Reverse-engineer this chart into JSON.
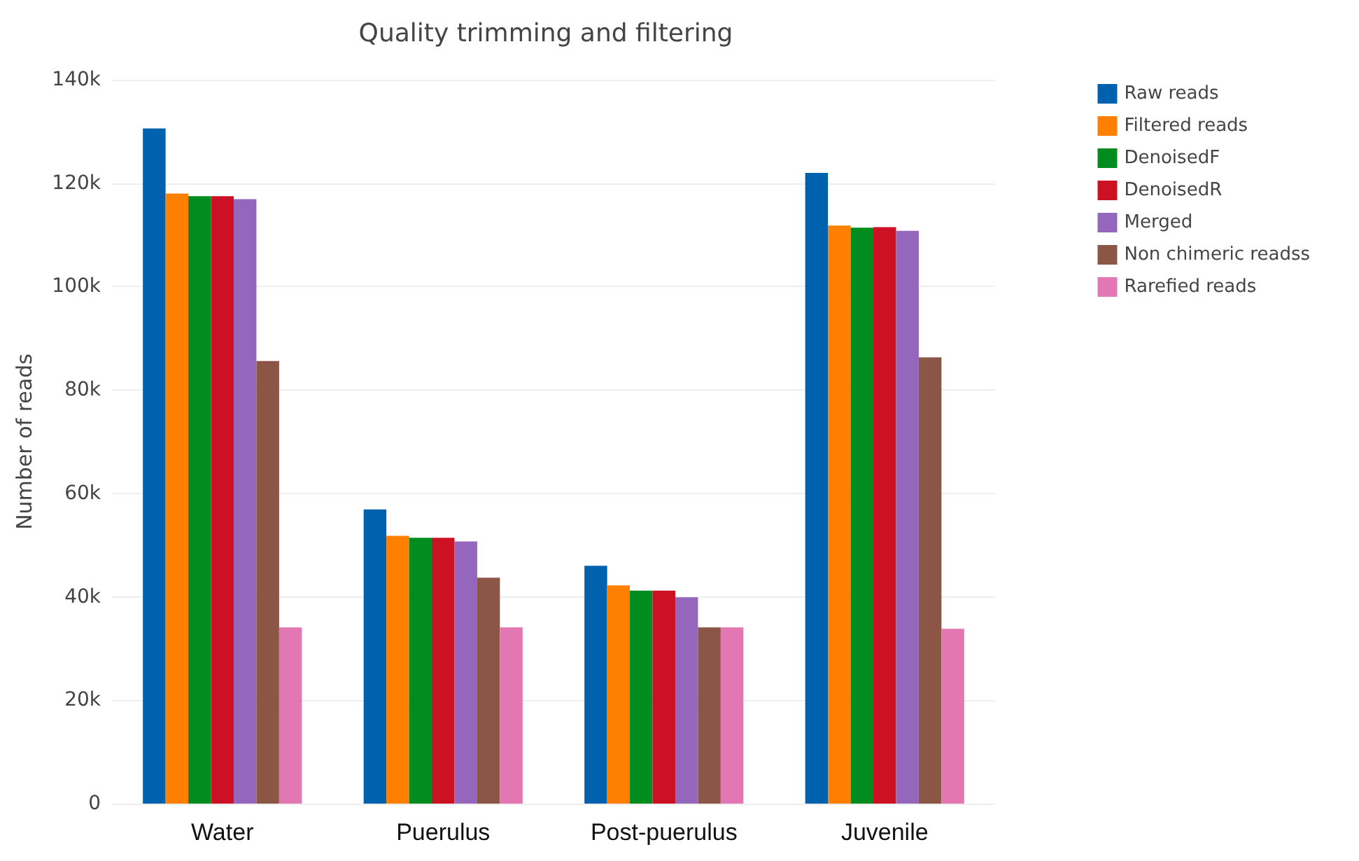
{
  "chart_data": {
    "type": "bar",
    "title": "Quality trimming and filtering",
    "ylabel": "Number of reads",
    "categories": [
      "Water",
      "Puerulus",
      "Post-puerulus",
      "Juvenile"
    ],
    "series": [
      {
        "name": "Raw reads",
        "color": "#0061ae",
        "values": [
          130.6,
          56.9,
          46,
          122
        ]
      },
      {
        "name": "Filtered reads",
        "color": "#ff7f00",
        "values": [
          118,
          51.8,
          42.2,
          111.8
        ]
      },
      {
        "name": "DenoisedF",
        "color": "#008c1e",
        "values": [
          117.5,
          51.4,
          41.2,
          111.4
        ]
      },
      {
        "name": "DenoisedR",
        "color": "#cc1125",
        "values": [
          117.5,
          51.4,
          41.2,
          111.5
        ]
      },
      {
        "name": "Merged",
        "color": "#9467bd",
        "values": [
          116.9,
          50.7,
          39.9,
          110.8
        ]
      },
      {
        "name": "Non chimeric readss",
        "color": "#8c5646",
        "values": [
          85.6,
          43.7,
          34.1,
          86.3
        ]
      },
      {
        "name": "Rarefied reads",
        "color": "#e377b4",
        "values": [
          34.1,
          34.1,
          34.1,
          33.8
        ]
      }
    ],
    "ylim": [
      0,
      140
    ],
    "yticks": [
      {
        "value": 0,
        "label": "0"
      },
      {
        "value": 20,
        "label": "20k"
      },
      {
        "value": 40,
        "label": "40k"
      },
      {
        "value": 60,
        "label": "60k"
      },
      {
        "value": 80,
        "label": "80k"
      },
      {
        "value": 100,
        "label": "100k"
      },
      {
        "value": 120,
        "label": "120k"
      },
      {
        "value": 140,
        "label": "140k"
      }
    ],
    "grid": "y",
    "legend": "top right"
  }
}
